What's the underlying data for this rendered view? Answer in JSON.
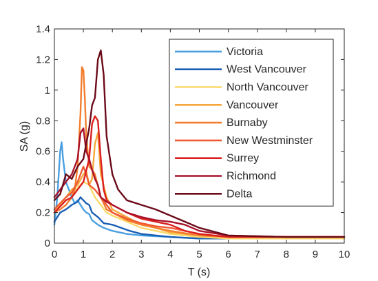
{
  "chart_data": {
    "type": "line",
    "title": "",
    "xlabel": "T (s)",
    "ylabel": "SA (g)",
    "xlim": [
      0,
      10
    ],
    "ylim": [
      0,
      1.4
    ],
    "xticks": [
      "0",
      "1",
      "2",
      "3",
      "4",
      "5",
      "6",
      "7",
      "8",
      "9",
      "10"
    ],
    "yticks": [
      "0",
      "0.2",
      "0.4",
      "0.6",
      "0.8",
      "1",
      "1.2",
      "1.4"
    ],
    "grid": false,
    "legend_position": "top-right",
    "series": [
      {
        "name": "Victoria",
        "color": "#4a9fe0",
        "x": [
          0,
          0.1,
          0.2,
          0.25,
          0.3,
          0.4,
          0.5,
          0.6,
          0.7,
          0.8,
          0.9,
          1.0,
          1.1,
          1.2,
          1.3,
          1.5,
          1.7,
          2.0,
          2.5,
          3.0,
          4.0,
          5.0,
          6.0,
          8.0,
          10.0
        ],
        "y": [
          0.12,
          0.3,
          0.6,
          0.66,
          0.55,
          0.4,
          0.35,
          0.3,
          0.26,
          0.28,
          0.25,
          0.22,
          0.2,
          0.19,
          0.15,
          0.12,
          0.1,
          0.08,
          0.06,
          0.05,
          0.04,
          0.03,
          0.03,
          0.03,
          0.03
        ]
      },
      {
        "name": "West Vancouver",
        "color": "#1a5fb4",
        "x": [
          0,
          0.2,
          0.4,
          0.6,
          0.8,
          0.9,
          1.0,
          1.1,
          1.2,
          1.3,
          1.5,
          1.7,
          2.0,
          2.3,
          2.6,
          3.0,
          4.0,
          5.0,
          6.0,
          8.0,
          10.0
        ],
        "y": [
          0.14,
          0.2,
          0.22,
          0.25,
          0.27,
          0.3,
          0.28,
          0.26,
          0.25,
          0.2,
          0.17,
          0.13,
          0.12,
          0.1,
          0.08,
          0.06,
          0.04,
          0.03,
          0.03,
          0.03,
          0.03
        ]
      },
      {
        "name": "North Vancouver",
        "color": "#fbd96a",
        "x": [
          0,
          0.2,
          0.4,
          0.6,
          0.8,
          1.0,
          1.2,
          1.4,
          1.6,
          1.8,
          2.0,
          2.5,
          3.0,
          3.5,
          4.0,
          5.0,
          6.0,
          8.0,
          10.0
        ],
        "y": [
          0.2,
          0.25,
          0.3,
          0.33,
          0.36,
          0.4,
          0.38,
          0.3,
          0.25,
          0.2,
          0.18,
          0.14,
          0.1,
          0.08,
          0.06,
          0.04,
          0.03,
          0.03,
          0.03
        ]
      },
      {
        "name": "Vancouver",
        "color": "#f6a83c",
        "x": [
          0,
          0.2,
          0.4,
          0.6,
          0.8,
          1.0,
          1.1,
          1.2,
          1.3,
          1.4,
          1.5,
          1.6,
          1.8,
          2.0,
          2.5,
          3.0,
          3.5,
          4.0,
          5.0,
          6.0,
          8.0,
          10.0
        ],
        "y": [
          0.22,
          0.26,
          0.3,
          0.35,
          0.38,
          0.45,
          0.47,
          0.38,
          0.42,
          0.65,
          0.72,
          0.45,
          0.3,
          0.22,
          0.17,
          0.12,
          0.1,
          0.07,
          0.05,
          0.04,
          0.04,
          0.04
        ]
      },
      {
        "name": "Burnaby",
        "color": "#f37d2e",
        "x": [
          0,
          0.2,
          0.4,
          0.6,
          0.7,
          0.8,
          0.9,
          0.95,
          1.0,
          1.05,
          1.1,
          1.2,
          1.3,
          1.4,
          1.6,
          1.8,
          2.0,
          2.5,
          3.0,
          4.0,
          5.0,
          6.0,
          8.0,
          10.0
        ],
        "y": [
          0.2,
          0.22,
          0.25,
          0.3,
          0.35,
          0.5,
          0.85,
          1.15,
          1.13,
          0.95,
          0.7,
          0.5,
          0.48,
          0.45,
          0.3,
          0.22,
          0.2,
          0.15,
          0.12,
          0.08,
          0.05,
          0.04,
          0.04,
          0.04
        ]
      },
      {
        "name": "New Westminster",
        "color": "#ef5a34",
        "x": [
          0,
          0.2,
          0.4,
          0.6,
          0.8,
          1.0,
          1.1,
          1.2,
          1.4,
          1.6,
          1.8,
          2.0,
          2.5,
          3.0,
          3.5,
          4.0,
          5.0,
          6.0,
          8.0,
          10.0
        ],
        "y": [
          0.22,
          0.26,
          0.3,
          0.33,
          0.4,
          0.5,
          0.45,
          0.38,
          0.35,
          0.3,
          0.25,
          0.2,
          0.16,
          0.13,
          0.11,
          0.1,
          0.06,
          0.04,
          0.04,
          0.04
        ]
      },
      {
        "name": "Surrey",
        "color": "#db1e1e",
        "x": [
          0,
          0.2,
          0.4,
          0.6,
          0.8,
          1.0,
          1.2,
          1.3,
          1.4,
          1.5,
          1.6,
          1.7,
          1.8,
          2.0,
          2.5,
          3.0,
          3.5,
          4.0,
          4.5,
          5.0,
          6.0,
          8.0,
          10.0
        ],
        "y": [
          0.2,
          0.24,
          0.28,
          0.3,
          0.35,
          0.4,
          0.55,
          0.78,
          0.83,
          0.8,
          0.55,
          0.35,
          0.28,
          0.25,
          0.2,
          0.16,
          0.14,
          0.12,
          0.08,
          0.06,
          0.04,
          0.04,
          0.04
        ]
      },
      {
        "name": "Richmond",
        "color": "#a8122a",
        "x": [
          0,
          0.2,
          0.4,
          0.6,
          0.8,
          0.9,
          1.0,
          1.1,
          1.2,
          1.3,
          1.4,
          1.5,
          1.6,
          1.8,
          2.0,
          2.5,
          3.0,
          3.5,
          4.0,
          4.5,
          5.0,
          6.0,
          8.0,
          10.0
        ],
        "y": [
          0.3,
          0.35,
          0.4,
          0.45,
          0.55,
          0.72,
          0.75,
          0.6,
          0.55,
          0.48,
          0.42,
          0.38,
          0.3,
          0.27,
          0.25,
          0.2,
          0.17,
          0.15,
          0.14,
          0.12,
          0.08,
          0.05,
          0.04,
          0.04
        ]
      },
      {
        "name": "Delta",
        "color": "#6b0a18",
        "x": [
          0,
          0.2,
          0.4,
          0.6,
          0.8,
          1.0,
          1.1,
          1.2,
          1.3,
          1.4,
          1.5,
          1.6,
          1.7,
          1.8,
          2.0,
          2.2,
          2.5,
          3.0,
          3.5,
          4.0,
          4.5,
          5.0,
          6.0,
          8.0,
          10.0
        ],
        "y": [
          0.28,
          0.32,
          0.45,
          0.42,
          0.5,
          0.55,
          0.65,
          0.75,
          0.9,
          0.95,
          1.2,
          1.26,
          1.1,
          0.7,
          0.45,
          0.35,
          0.28,
          0.25,
          0.22,
          0.18,
          0.14,
          0.1,
          0.05,
          0.04,
          0.04
        ]
      }
    ]
  }
}
